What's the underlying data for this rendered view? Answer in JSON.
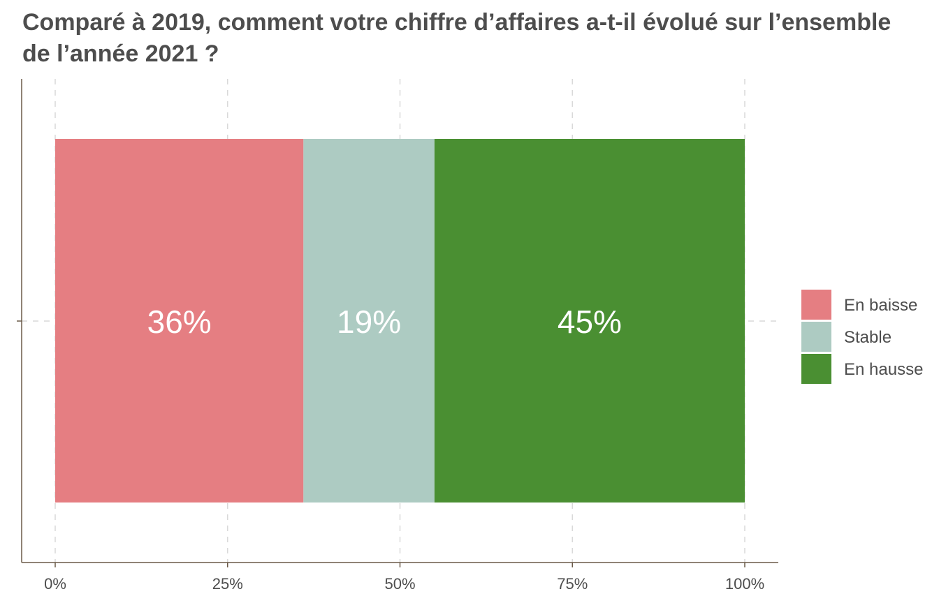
{
  "chart_data": {
    "type": "bar",
    "orientation": "horizontal",
    "stacked": true,
    "title": "Comparé à 2019, comment votre chiffre d’affaires a-t-il évolué sur l’ensemble de l’année 2021 ?",
    "xlabel": "",
    "ylabel": "",
    "xlim": [
      0,
      1
    ],
    "x_ticks": [
      0,
      0.25,
      0.5,
      0.75,
      1
    ],
    "x_tick_labels": [
      "0%",
      "25%",
      "50%",
      "75%",
      "100%"
    ],
    "grid": true,
    "legend_position": "right",
    "series": [
      {
        "name": "En baisse",
        "values": [
          0.36
        ],
        "label": "36%",
        "color": "#e57e82"
      },
      {
        "name": "Stable",
        "values": [
          0.19
        ],
        "label": "19%",
        "color": "#adcbc2"
      },
      {
        "name": "En hausse",
        "values": [
          0.45
        ],
        "label": "45%",
        "color": "#4a8f32"
      }
    ]
  },
  "colors": {
    "axis": "#6b5a48",
    "grid": "#d9d9d9",
    "text": "#4d4d4d",
    "data_label": "#ffffff"
  }
}
